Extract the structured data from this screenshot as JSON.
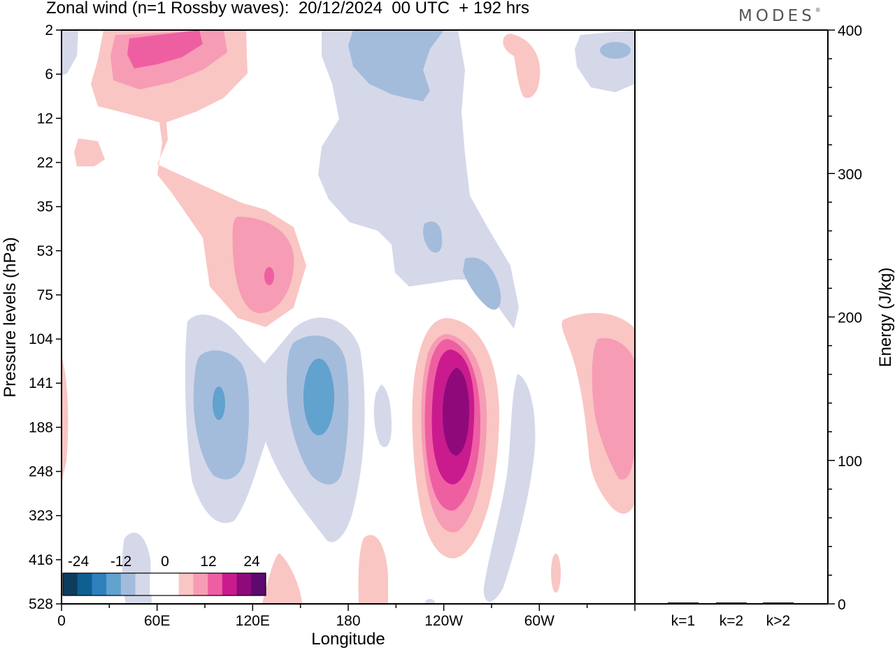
{
  "title": "Zonal wind (n=1 Rossby waves):  20/12/2024  00 UTC  + 192 hrs",
  "logo": "MODES",
  "chart_data": [
    {
      "type": "heatmap",
      "title": "Zonal wind (n=1 Rossby waves):  20/12/2024  00 UTC  + 192 hrs",
      "xlabel": "Longitude",
      "ylabel": "Pressure levels (hPa)",
      "x_ticks": [
        "0",
        "60E",
        "120E",
        "180",
        "120W",
        "60W"
      ],
      "y_ticks": [
        "2",
        "6",
        "12",
        "22",
        "35",
        "53",
        "75",
        "104",
        "141",
        "188",
        "248",
        "323",
        "416",
        "528"
      ],
      "colorbar": {
        "labels": [
          "-24",
          "-12",
          "0",
          "12",
          "24"
        ],
        "levels": [
          -24,
          -20,
          -16,
          -12,
          -8,
          -4,
          0,
          4,
          8,
          12,
          16,
          20,
          24
        ],
        "colors": [
          "#0d3d5c",
          "#0f5f91",
          "#2f80bd",
          "#62a2cf",
          "#a4bcdb",
          "#d5d8e9",
          "#ffffff",
          "#ffffff",
          "#f9c6c3",
          "#f79cb5",
          "#ee5fa2",
          "#c91b8e",
          "#8e0a7a",
          "#5c0a6e"
        ]
      },
      "features": [
        {
          "lon": 50,
          "level": "2",
          "value": 12
        },
        {
          "lon": 110,
          "level": "53",
          "value": 12
        },
        {
          "lon": 105,
          "level": "141",
          "value": -12
        },
        {
          "lon": 165,
          "level": "141",
          "value": -12
        },
        {
          "lon": 220,
          "level": "6",
          "value": -8
        },
        {
          "lon": 242,
          "level": "53",
          "value": -8
        },
        {
          "lon": 236,
          "level": "141",
          "value": 24
        },
        {
          "lon": 345,
          "level": "141",
          "value": 12
        }
      ]
    },
    {
      "type": "bar",
      "ylabel": "Energy (J/kg)",
      "categories": [
        "k=1",
        "k=2",
        "k>2"
      ],
      "values": [
        0.5,
        0.4,
        0.8
      ],
      "ylim": [
        0,
        400
      ],
      "y_ticks": [
        "0",
        "100",
        "200",
        "300",
        "400"
      ]
    }
  ]
}
